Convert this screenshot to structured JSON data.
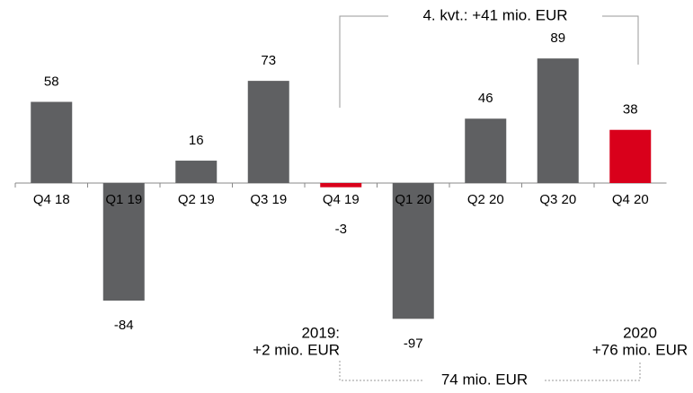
{
  "chart_data": {
    "type": "bar",
    "categories": [
      "Q4 18",
      "Q1 19",
      "Q2 19",
      "Q3 19",
      "Q4 19",
      "Q1 20",
      "Q2 20",
      "Q3 20",
      "Q4 20"
    ],
    "values": [
      58,
      -84,
      16,
      73,
      -3,
      -97,
      46,
      89,
      38
    ],
    "colors": [
      "#5f6062",
      "#5f6062",
      "#5f6062",
      "#5f6062",
      "#d9001b",
      "#5f6062",
      "#5f6062",
      "#5f6062",
      "#d9001b"
    ],
    "annotations": [
      [
        "4. kvt.: +41 mio. EUR"
      ],
      [
        "2019:",
        "+2 mio. EUR"
      ],
      [
        "2020",
        "+76 mio. EUR"
      ],
      [
        "74 mio. EUR"
      ]
    ],
    "annotation_color": "#3cb44b"
  }
}
